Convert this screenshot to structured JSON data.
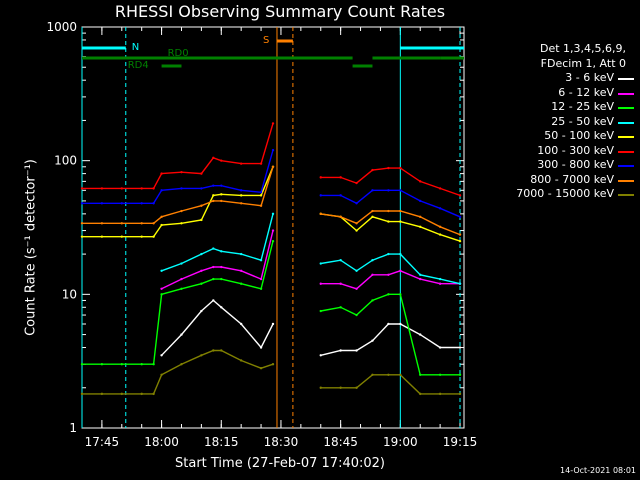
{
  "title": "RHESSI Observing Summary Count Rates",
  "xlabel": "Start Time (27-Feb-07 17:40:02)",
  "ylabel": "Count Rate (s⁻¹ detector⁻¹)",
  "timestamp": "14-Oct-2021 08:01",
  "legend_header": [
    "Det 1,3,4,5,6,9,",
    "FDecim 1, Att 0"
  ],
  "annotations": {
    "N": "N",
    "S": "S",
    "RD0": "RD0",
    "RD4": "RD4"
  },
  "chart_data": {
    "type": "line",
    "title": "RHESSI Observing Summary Count Rates",
    "xlabel": "Start Time (27-Feb-07 17:40:02)",
    "ylabel": "Count Rate (s^-1 detector^-1)",
    "yscale": "log",
    "ylim": [
      1,
      1000
    ],
    "xlim": [
      "17:40",
      "19:16"
    ],
    "xticks": [
      "17:45",
      "18:00",
      "18:15",
      "18:30",
      "18:45",
      "19:00",
      "19:15"
    ],
    "yticks": [
      "1",
      "10",
      "100",
      "1000"
    ],
    "x": [
      "17:40",
      "17:45",
      "17:50",
      "17:55",
      "17:58",
      "18:00",
      "18:05",
      "18:10",
      "18:13",
      "18:15",
      "18:20",
      "18:25",
      "18:28",
      "18:30",
      "18:38",
      "18:40",
      "18:45",
      "18:49",
      "18:53",
      "18:57",
      "19:00",
      "19:05",
      "19:10",
      "19:15"
    ],
    "series": [
      {
        "name": "3 - 6 keV",
        "color": "#ffffff",
        "values": [
          null,
          null,
          null,
          null,
          null,
          3.5,
          5,
          7.5,
          9,
          8,
          6,
          4,
          6,
          null,
          null,
          3.5,
          3.8,
          3.8,
          4.5,
          6,
          6,
          5,
          4,
          4
        ]
      },
      {
        "name": "6 - 12 keV",
        "color": "#ff00ff",
        "values": [
          null,
          null,
          null,
          null,
          null,
          11,
          13,
          15,
          16,
          16,
          15,
          13,
          30,
          null,
          null,
          12,
          12,
          11,
          14,
          14,
          15,
          13,
          12,
          12
        ]
      },
      {
        "name": "12 - 25 keV",
        "color": "#00ff00",
        "values": [
          3,
          3,
          3,
          3,
          3,
          10,
          11,
          12,
          13,
          13,
          12,
          11,
          25,
          null,
          null,
          7.5,
          8,
          7,
          9,
          10,
          10,
          2.5,
          2.5,
          2.5
        ]
      },
      {
        "name": "25 - 50 keV",
        "color": "#00ffff",
        "values": [
          null,
          null,
          null,
          null,
          null,
          15,
          17,
          20,
          22,
          21,
          20,
          18,
          40,
          null,
          null,
          17,
          18,
          15,
          18,
          20,
          20,
          14,
          13,
          12
        ]
      },
      {
        "name": "50 - 100 keV",
        "color": "#ffff00",
        "values": [
          27,
          27,
          27,
          27,
          27,
          33,
          34,
          36,
          55,
          56,
          55,
          55,
          90,
          null,
          null,
          40,
          38,
          30,
          38,
          35,
          35,
          32,
          28,
          25
        ]
      },
      {
        "name": "100 - 300 keV",
        "color": "#ff0000",
        "values": [
          62,
          62,
          62,
          62,
          62,
          80,
          82,
          80,
          105,
          100,
          95,
          95,
          190,
          null,
          null,
          75,
          75,
          68,
          85,
          88,
          88,
          70,
          62,
          55
        ]
      },
      {
        "name": "300 - 800 keV",
        "color": "#0000ff",
        "values": [
          48,
          48,
          48,
          48,
          48,
          60,
          62,
          62,
          65,
          65,
          60,
          58,
          120,
          null,
          null,
          55,
          55,
          48,
          60,
          60,
          60,
          50,
          44,
          38
        ]
      },
      {
        "name": "800 - 7000 keV",
        "color": "#ff8000",
        "values": [
          34,
          34,
          34,
          34,
          34,
          38,
          42,
          46,
          50,
          50,
          48,
          46,
          90,
          null,
          null,
          40,
          38,
          34,
          42,
          42,
          42,
          38,
          32,
          28
        ]
      },
      {
        "name": "7000 - 15000 keV",
        "color": "#808000",
        "values": [
          1.8,
          1.8,
          1.8,
          1.8,
          1.8,
          2.5,
          3,
          3.5,
          3.8,
          3.8,
          3.2,
          2.8,
          3,
          null,
          null,
          2,
          2,
          2,
          2.5,
          2.5,
          2.5,
          1.8,
          1.8,
          1.8
        ]
      }
    ]
  }
}
